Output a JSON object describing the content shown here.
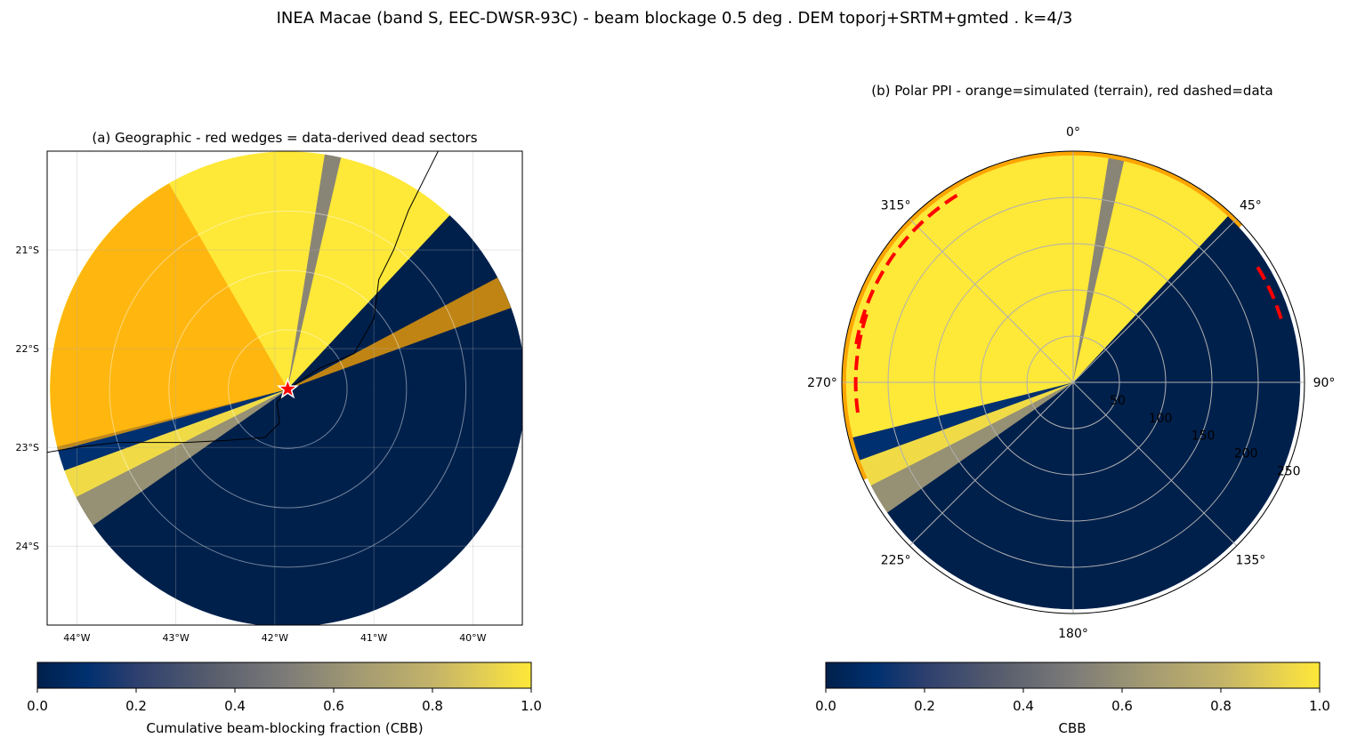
{
  "figure": {
    "title": "INEA Macae (band S, EEC-DWSR-93C) - beam blockage 0.5 deg . DEM toporj+SRTM+gmted . k=4/3"
  },
  "colors": {
    "cbb_0": "#00204c",
    "cbb_02": "#2d3f6e",
    "cbb_05": "#7c7b78",
    "cbb_08": "#c3b369",
    "cbb_1": "#fee838",
    "dead_wedge": "#ffa500",
    "data_arc": "#ff0000",
    "star": "#ff0000"
  },
  "chart_data": [
    {
      "type": "heatmap",
      "panel": "geographic",
      "title": "(a) Geographic  -  red wedges = data-derived dead sectors",
      "xlim": [
        -44.3,
        -39.5
      ],
      "ylim": [
        -24.8,
        -20.0
      ],
      "x_ticks": [
        -44,
        -43,
        -42,
        -41,
        -40
      ],
      "x_tick_labels": [
        "44°W",
        "43°W",
        "42°W",
        "41°W",
        "40°W"
      ],
      "y_ticks": [
        -21,
        -22,
        -23,
        -24
      ],
      "y_tick_labels": [
        "21°S",
        "22°S",
        "23°S",
        "24°S"
      ],
      "grid": true,
      "radar_site": {
        "lon": -41.87,
        "lat": -22.41
      },
      "max_range_deg": 2.4,
      "range_rings_deg": [
        0.6,
        1.2,
        1.8
      ],
      "dead_sectors": [
        {
          "az_start": 255,
          "az_end": 330
        },
        {
          "az_start": 62,
          "az_end": 70
        }
      ],
      "colorbar": {
        "label": "Cumulative beam-blocking fraction (CBB)",
        "range": [
          0,
          1
        ],
        "ticks": [
          0.0,
          0.2,
          0.4,
          0.6,
          0.8,
          1.0
        ],
        "tick_labels": [
          "0.0",
          "0.2",
          "0.4",
          "0.6",
          "0.8",
          "1.0"
        ]
      }
    },
    {
      "type": "heatmap",
      "panel": "polar-ppi",
      "title": "(b) Polar PPI  -  orange=simulated (terrain), red dashed=data",
      "theta_ticks": [
        0,
        45,
        90,
        135,
        180,
        225,
        270,
        315
      ],
      "theta_tick_labels": [
        "0°",
        "45°",
        "90°",
        "135°",
        "180°",
        "225°",
        "270°",
        "315°"
      ],
      "r_max_km": 250,
      "r_ticks": [
        50,
        100,
        150,
        200,
        250
      ],
      "r_tick_labels": [
        "50",
        "100",
        "150",
        "200",
        "250"
      ],
      "grid": true,
      "sectors_cbb": [
        {
          "az_start": 0,
          "az_end": 9,
          "cbb": 1.0
        },
        {
          "az_start": 9,
          "az_end": 13,
          "cbb": 0.55
        },
        {
          "az_start": 13,
          "az_end": 43,
          "cbb": 1.0
        },
        {
          "az_start": 43,
          "az_end": 90,
          "cbb": 0.0
        },
        {
          "az_start": 90,
          "az_end": 235,
          "cbb": 0.0
        },
        {
          "az_start": 235,
          "az_end": 243,
          "cbb": 0.6
        },
        {
          "az_start": 243,
          "az_end": 250,
          "cbb": 0.95
        },
        {
          "az_start": 250,
          "az_end": 256,
          "cbb": 0.1
        },
        {
          "az_start": 256,
          "az_end": 360,
          "cbb": 1.0
        }
      ],
      "simulated_dead_sectors": [
        {
          "az_start": 0,
          "az_end": 47
        },
        {
          "az_start": 245,
          "az_end": 360
        }
      ],
      "data_dead_arcs": [
        {
          "az_start": 262,
          "az_end": 290,
          "r_km": 235
        },
        {
          "az_start": 280,
          "az_end": 330,
          "r_km": 238
        },
        {
          "az_start": 58,
          "az_end": 73,
          "r_km": 235
        }
      ],
      "colorbar": {
        "label": "CBB",
        "range": [
          0,
          1
        ],
        "ticks": [
          0.0,
          0.2,
          0.4,
          0.6,
          0.8,
          1.0
        ],
        "tick_labels": [
          "0.0",
          "0.2",
          "0.4",
          "0.6",
          "0.8",
          "1.0"
        ]
      }
    }
  ]
}
